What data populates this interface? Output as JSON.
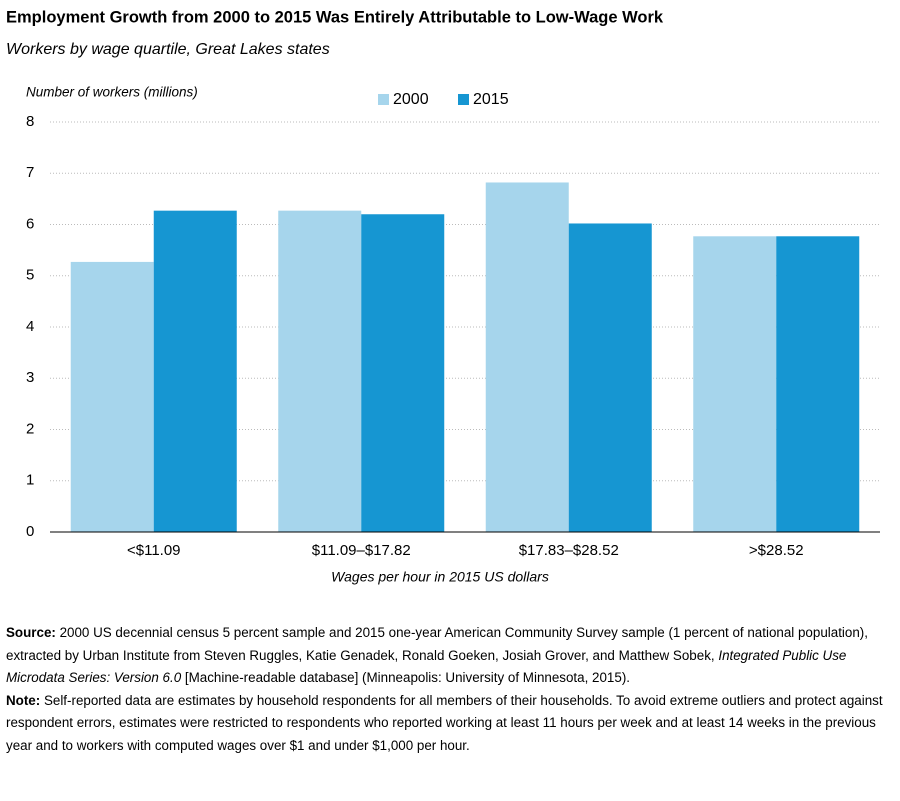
{
  "chart_data": {
    "type": "bar",
    "title": "Employment Growth from 2000 to 2015 Was Entirely Attributable to Low-Wage Work",
    "subtitle": "Workers by wage quartile, Great Lakes states",
    "y_label": "Number of workers (millions)",
    "x_label": "Wages per hour in 2015 US dollars",
    "categories": [
      "<$11.09",
      "$11.09–$17.82",
      "$17.83–$28.52",
      ">$28.52"
    ],
    "series": [
      {
        "name": "2000",
        "color": "#a6d5ec",
        "values": [
          5.27,
          6.27,
          6.82,
          5.77
        ]
      },
      {
        "name": "2015",
        "color": "#1696d2",
        "values": [
          6.27,
          6.2,
          6.02,
          5.77
        ]
      }
    ],
    "ylim": [
      0,
      8
    ],
    "yticks": [
      0,
      1,
      2,
      3,
      4,
      5,
      6,
      7,
      8
    ],
    "grid": true,
    "legend": "top"
  },
  "notes": {
    "source": {
      "label": "Source:",
      "text": "2000 US decennial census 5 percent sample and 2015 one-year American Community Survey sample (1 percent of national population), extracted by Urban Institute from Steven Ruggles, Katie Genadek, Ronald Goeken, Josiah Grover, and Matthew Sobek,",
      "italic": "Integrated Public Use Microdata Series: Version 6.0",
      "text_end": "[Machine-readable database] (Minneapolis: University of Minnesota, 2015)."
    },
    "note": {
      "label": "Note:",
      "text": "Self-reported data are estimates by household respondents for all members of their households. To avoid extreme outliers and protect against respondent errors, estimates were restricted to respondents who reported working at least 11 hours per week and at least 14 weeks in the previous year and to workers with computed wages over $1 and under $1,000 per hour."
    }
  }
}
